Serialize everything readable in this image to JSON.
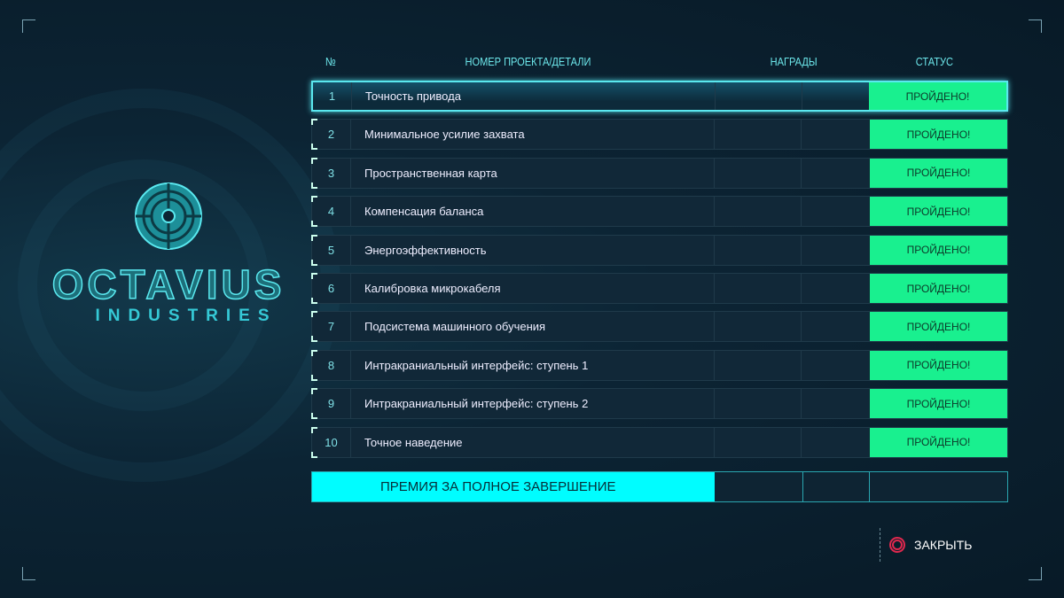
{
  "brand": {
    "name": "OCTAVIUS",
    "sub": "INDUSTRIES",
    "accent": "#4fd6d8"
  },
  "headers": {
    "num": "№",
    "project": "НОМЕР ПРОЕКТА/ДЕТАЛИ",
    "rewards": "НАГРАДЫ",
    "status": "СТАТУС"
  },
  "rows": [
    {
      "num": "1",
      "name": "Точность привода",
      "status": "ПРОЙДЕНО!"
    },
    {
      "num": "2",
      "name": "Минимальное усилие захвата",
      "status": "ПРОЙДЕНО!"
    },
    {
      "num": "3",
      "name": "Пространственная карта",
      "status": "ПРОЙДЕНО!"
    },
    {
      "num": "4",
      "name": "Компенсация баланса",
      "status": "ПРОЙДЕНО!"
    },
    {
      "num": "5",
      "name": "Энергоэффективность",
      "status": "ПРОЙДЕНО!"
    },
    {
      "num": "6",
      "name": "Калибровка микрокабеля",
      "status": "ПРОЙДЕНО!"
    },
    {
      "num": "7",
      "name": "Подсистема машинного обучения",
      "status": "ПРОЙДЕНО!"
    },
    {
      "num": "8",
      "name": "Интракраниальный интерфейс: ступень 1",
      "status": "ПРОЙДЕНО!"
    },
    {
      "num": "9",
      "name": "Интракраниальный интерфейс: ступень 2",
      "status": "ПРОЙДЕНО!"
    },
    {
      "num": "10",
      "name": "Точное наведение",
      "status": "ПРОЙДЕНО!"
    }
  ],
  "selected_row": 1,
  "bonus": {
    "label": "ПРЕМИЯ ЗА ПОЛНОЕ ЗАВЕРШЕНИЕ"
  },
  "close": {
    "label": "ЗАКРЫТЬ",
    "icon": "circle-button-icon"
  },
  "colors": {
    "status_passed": "#19f08f",
    "bonus": "#00fdff",
    "close_icon": "#e0284e"
  }
}
